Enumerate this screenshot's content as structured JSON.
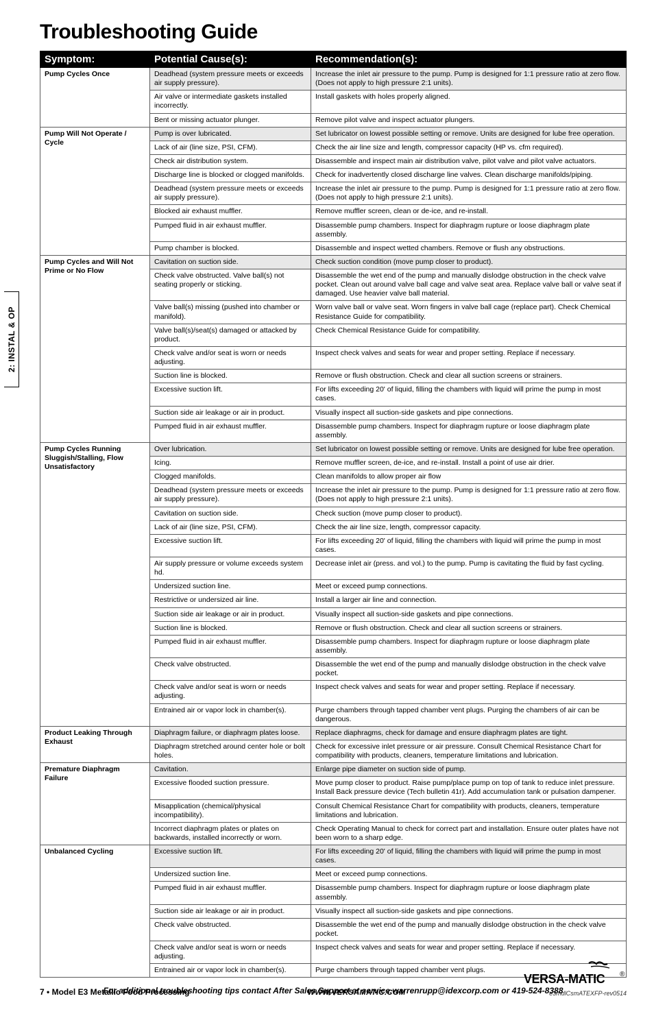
{
  "title": "Troubleshooting Guide",
  "side_tab": "2: INSTAL & OP",
  "headers": {
    "c1": "Symptom:",
    "c2": "Potential Cause(s):",
    "c3": "Recommendation(s):"
  },
  "colors": {
    "header_bg": "#000000",
    "header_fg": "#ffffff",
    "row_shade": "#e8e8e8",
    "border": "#5a5a5a",
    "page_bg": "#ffffff"
  },
  "fonts": {
    "title_size": 30,
    "body_size": 10.5,
    "header_size": 15,
    "symptom_size": 12
  },
  "groups": [
    {
      "symptom": "Pump Cycles Once",
      "rows": [
        {
          "cause": "Deadhead (system pressure meets or exceeds air supply pressure).",
          "rec": "Increase the inlet air pressure to the pump. Pump is designed for 1:1 pressure ratio at zero flow. (Does not apply to high pressure 2:1 units).",
          "shade": true
        },
        {
          "cause": "Air valve or intermediate gaskets installed incorrectly.",
          "rec": "Install gaskets with holes properly aligned.",
          "shade": false
        },
        {
          "cause": "Bent or missing actuator plunger.",
          "rec": "Remove pilot valve and inspect actuator plungers.",
          "shade": false
        }
      ]
    },
    {
      "symptom": "Pump Will Not Operate / Cycle",
      "rows": [
        {
          "cause": "Pump is over lubricated.",
          "rec": "Set lubricator on lowest possible setting or remove. Units are designed for lube free operation.",
          "shade": true
        },
        {
          "cause": "Lack of air (line size, PSI, CFM).",
          "rec": "Check the air line size and length, compressor capacity (HP vs. cfm required).",
          "shade": false
        },
        {
          "cause": "Check air distribution system.",
          "rec": "Disassemble and inspect main air distribution valve, pilot valve and pilot valve actuators.",
          "shade": false
        },
        {
          "cause": "Discharge line is blocked or clogged manifolds.",
          "rec": "Check for inadvertently closed discharge line valves. Clean discharge manifolds/piping.",
          "shade": false
        },
        {
          "cause": "Deadhead (system pressure meets or exceeds air supply pressure).",
          "rec": "Increase the inlet air pressure to the pump. Pump is designed for 1:1 pressure ratio at zero flow. (Does not apply to high pressure 2:1 units).",
          "shade": false
        },
        {
          "cause": "Blocked air exhaust muffler.",
          "rec": "Remove muffler screen, clean or de-ice, and re-install.",
          "shade": false
        },
        {
          "cause": "Pumped fluid in air exhaust muffler.",
          "rec": "Disassemble pump chambers. Inspect for diaphragm rupture or loose diaphragm plate assembly.",
          "shade": false
        },
        {
          "cause": "Pump chamber is blocked.",
          "rec": "Disassemble and inspect wetted chambers. Remove or flush any obstructions.",
          "shade": false
        }
      ]
    },
    {
      "symptom": "Pump Cycles and Will Not Prime or No Flow",
      "rows": [
        {
          "cause": "Cavitation on suction side.",
          "rec": "Check suction condition (move pump closer to product).",
          "shade": true
        },
        {
          "cause": "Check valve obstructed. Valve ball(s) not seating properly or sticking.",
          "rec": "Disassemble the wet end of the pump and manually dislodge obstruction in the check valve pocket. Clean out around valve ball cage and valve seat area. Replace valve ball or valve seat if damaged. Use heavier valve ball material.",
          "shade": false
        },
        {
          "cause": "Valve ball(s) missing (pushed into chamber or manifold).",
          "rec": "Worn valve ball or valve seat. Worn fingers in valve ball cage (replace part). Check Chemical Resistance Guide for compatibility.",
          "shade": false
        },
        {
          "cause": "Valve ball(s)/seat(s) damaged or attacked by product.",
          "rec": "Check Chemical Resistance Guide for compatibility.",
          "shade": false
        },
        {
          "cause": "Check valve and/or seat is worn or needs adjusting.",
          "rec": "Inspect check valves and seats for wear and proper setting. Replace if necessary.",
          "shade": false
        },
        {
          "cause": "Suction line is blocked.",
          "rec": "Remove or flush obstruction. Check and clear all suction screens or strainers.",
          "shade": false
        },
        {
          "cause": "Excessive suction lift.",
          "rec": "For lifts exceeding 20' of liquid, filling the chambers with liquid will prime the pump in most cases.",
          "shade": false
        },
        {
          "cause": "Suction side air leakage or air in product.",
          "rec": "Visually inspect all suction-side gaskets and pipe connections.",
          "shade": false
        },
        {
          "cause": "Pumped fluid in air exhaust muffler.",
          "rec": "Disassemble pump chambers. Inspect for diaphragm rupture or loose diaphragm plate assembly.",
          "shade": false
        }
      ]
    },
    {
      "symptom": "Pump Cycles Running Sluggish/Stalling, Flow Unsatisfactory",
      "rows": [
        {
          "cause": "Over lubrication.",
          "rec": "Set lubricator on lowest possible setting or remove. Units are designed for lube free operation.",
          "shade": true
        },
        {
          "cause": "Icing.",
          "rec": "Remove muffler screen, de-ice, and re-install. Install a point of use air drier.",
          "shade": false
        },
        {
          "cause": "Clogged manifolds.",
          "rec": "Clean manifolds to allow proper air flow",
          "shade": false
        },
        {
          "cause": "Deadhead (system pressure meets or exceeds air supply pressure).",
          "rec": "Increase the inlet air pressure to the pump. Pump is designed for 1:1 pressure ratio at zero flow. (Does not apply to high pressure 2:1 units).",
          "shade": false
        },
        {
          "cause": "Cavitation on suction side.",
          "rec": "Check suction (move pump closer to product).",
          "shade": false
        },
        {
          "cause": "Lack of air (line size, PSI, CFM).",
          "rec": "Check the air line size, length, compressor capacity.",
          "shade": false
        },
        {
          "cause": "Excessive suction lift.",
          "rec": "For lifts exceeding 20' of liquid, filling the chambers with liquid will prime the pump in most cases.",
          "shade": false
        },
        {
          "cause": "Air supply pressure or volume exceeds system hd.",
          "rec": "Decrease inlet air (press. and vol.) to the pump. Pump is cavitating the fluid by fast cycling.",
          "shade": false
        },
        {
          "cause": "Undersized suction line.",
          "rec": "Meet or exceed pump connections.",
          "shade": false
        },
        {
          "cause": "Restrictive or undersized air line.",
          "rec": "Install a larger air line and connection.",
          "shade": false
        },
        {
          "cause": "Suction side air leakage or air in product.",
          "rec": "Visually inspect all suction-side gaskets and pipe connections.",
          "shade": false
        },
        {
          "cause": "Suction line is blocked.",
          "rec": "Remove or flush obstruction. Check and clear all suction screens or strainers.",
          "shade": false
        },
        {
          "cause": "Pumped fluid in air exhaust muffler.",
          "rec": "Disassemble pump chambers. Inspect for diaphragm rupture or loose diaphragm plate assembly.",
          "shade": false
        },
        {
          "cause": "Check valve obstructed.",
          "rec": "Disassemble the wet end of the pump and manually dislodge obstruction in the check valve pocket.",
          "shade": false
        },
        {
          "cause": "Check valve and/or seat is worn or needs adjusting.",
          "rec": "Inspect check valves and seats for wear and proper setting. Replace if necessary.",
          "shade": false
        },
        {
          "cause": "Entrained air or vapor lock in chamber(s).",
          "rec": "Purge chambers through tapped chamber vent plugs. Purging the chambers of air can be dangerous.",
          "shade": false
        }
      ]
    },
    {
      "symptom": "Product Leaking Through Exhaust",
      "rows": [
        {
          "cause": "Diaphragm failure, or diaphragm plates loose.",
          "rec": "Replace diaphragms, check for damage and ensure diaphragm plates are tight.",
          "shade": true
        },
        {
          "cause": "Diaphragm stretched around center hole or bolt holes.",
          "rec": "Check for excessive inlet pressure or air pressure. Consult Chemical Resistance Chart for compatibility with products, cleaners, temperature limitations and lubrication.",
          "shade": false
        }
      ]
    },
    {
      "symptom": "Premature Diaphragm Failure",
      "rows": [
        {
          "cause": "Cavitation.",
          "rec": "Enlarge pipe diameter on suction side of pump.",
          "shade": true
        },
        {
          "cause": "Excessive flooded suction pressure.",
          "rec": "Move pump closer to product. Raise pump/place pump on top of tank to reduce inlet pressure. Install Back pressure device (Tech bulletin 41r). Add accumulation tank or pulsation dampener.",
          "shade": false
        },
        {
          "cause": "Misapplication (chemical/physical incompatibility).",
          "rec": "Consult Chemical Resistance Chart for compatibility with products, cleaners, temperature limitations and lubrication.",
          "shade": false
        },
        {
          "cause": "Incorrect diaphragm plates or plates on backwards, installed incorrectly or worn.",
          "rec": "Check Operating Manual to check for correct part and installation. Ensure outer plates have not been worn to a sharp edge.",
          "shade": false
        }
      ]
    },
    {
      "symptom": "Unbalanced Cycling",
      "rows": [
        {
          "cause": "Excessive suction lift.",
          "rec": "For lifts exceeding 20' of liquid, filling the chambers with liquid will prime the pump in most cases.",
          "shade": true
        },
        {
          "cause": "Undersized suction line.",
          "rec": "Meet or exceed pump connections.",
          "shade": false
        },
        {
          "cause": "Pumped fluid in air exhaust muffler.",
          "rec": "Disassemble pump chambers. Inspect for diaphragm rupture or loose diaphragm plate assembly.",
          "shade": false
        },
        {
          "cause": "Suction side air leakage or air in product.",
          "rec": "Visually inspect all suction-side gaskets and pipe connections.",
          "shade": false
        },
        {
          "cause": "Check valve obstructed.",
          "rec": "Disassemble the wet end of the pump and manually dislodge obstruction in the check valve pocket.",
          "shade": false
        },
        {
          "cause": "Check valve and/or seat is worn or needs adjusting.",
          "rec": "Inspect check valves and seats for wear and proper setting. Replace if necessary.",
          "shade": false
        },
        {
          "cause": "Entrained air or vapor lock in chamber(s).",
          "rec": "Purge chambers through tapped chamber vent plugs.",
          "shade": false
        }
      ]
    }
  ],
  "footnote": "For additional troubleshooting tips contact After Sales Support at service.warrenrupp@idexcorp.com or 419-524-8388",
  "footer": {
    "page_num": "7",
    "model": "Model E3 Metallic Food Processing",
    "url_prefix": "WWW.",
    "url_mid": "VERSAMATIC",
    "url_suffix": ".COM",
    "brand": "VERSA-MATIC",
    "rev": "e3mdlCsmATEXFP-rev0514"
  }
}
